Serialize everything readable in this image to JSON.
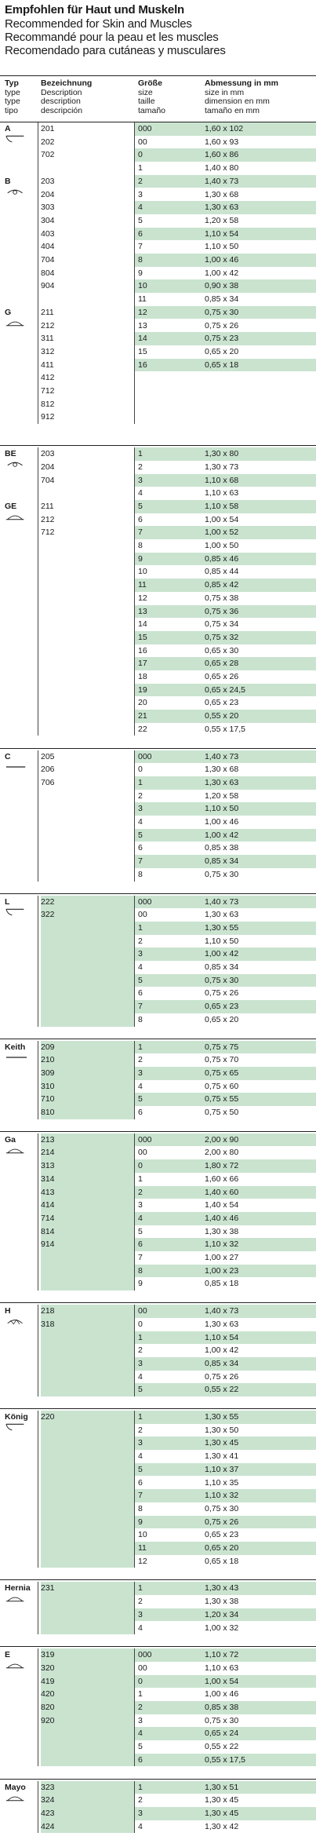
{
  "header": {
    "line1": "Empfohlen für Haut und Muskeln",
    "line2": "Recommended for Skin and Muscles",
    "line3": "Recommandé pour la peau et les muscles",
    "line4": "Recomendado para cutáneas y musculares"
  },
  "columns": {
    "typ": [
      "Typ",
      "type",
      "type",
      "tipo"
    ],
    "bez": [
      "Bezeichnung",
      "Description",
      "description",
      "descripción"
    ],
    "size": [
      "Größe",
      "size",
      "taille",
      "tamaño"
    ],
    "dim": [
      "Abmessung in mm",
      "size in mm",
      "dimension en mm",
      "tamaño en mm"
    ]
  },
  "sections": [
    {
      "types": [
        "A",
        "B",
        "G"
      ],
      "codes": [
        "201",
        "202",
        "702",
        "",
        "203",
        "204",
        "303",
        "304",
        "403",
        "404",
        "704",
        "804",
        "904",
        "",
        "211",
        "212",
        "311",
        "312",
        "411",
        "412",
        "712",
        "812",
        "912"
      ],
      "sizes": [
        "000",
        "00",
        "0",
        "1",
        "2",
        "3",
        "4",
        "5",
        "6",
        "7",
        "8",
        "9",
        "10",
        "11",
        "12",
        "13",
        "14",
        "15",
        "16"
      ],
      "dims": [
        "1,60 x 102",
        "1,60 x 93",
        "1,60 x 86",
        "1,40 x 80",
        "1,40 x 73",
        "1,30 x 68",
        "1,30 x 63",
        "1,20 x 58",
        "1,10 x 54",
        "1,10 x 50",
        "1,00 x 46",
        "1,00 x 42",
        "0,90 x 38",
        "0,85 x 34",
        "0,75 x 30",
        "0,75 x 26",
        "0,75 x 23",
        "0,65 x 20",
        "0,65 x 18"
      ]
    },
    {
      "types": [
        "BE",
        "GE"
      ],
      "codes": [
        "203",
        "204",
        "704",
        "",
        "211",
        "212",
        "712"
      ],
      "sizes": [
        "1",
        "2",
        "3",
        "4",
        "5",
        "6",
        "7",
        "8",
        "9",
        "10",
        "11",
        "12",
        "13",
        "14",
        "15",
        "16",
        "17",
        "18",
        "19",
        "20",
        "21",
        "22"
      ],
      "dims": [
        "1,30 x 80",
        "1,30 x 73",
        "1,10 x 68",
        "1,10 x 63",
        "1,10 x 58",
        "1,00 x 54",
        "1,00 x 52",
        "1,00 x 50",
        "0,85 x 46",
        "0,85 x 44",
        "0,85 x 42",
        "0,75 x 38",
        "0,75 x 36",
        "0,75 x 34",
        "0,75 x 32",
        "0,65 x 30",
        "0,65 x 28",
        "0,65 x 26",
        "0,65 x 24,5",
        "0,65 x 23",
        "0,55 x 20",
        "0,55 x 17,5"
      ]
    },
    {
      "types": [
        "C"
      ],
      "codes": [
        "205",
        "206",
        "706"
      ],
      "sizes": [
        "000",
        "0",
        "1",
        "2",
        "3",
        "4",
        "5",
        "6",
        "7",
        "8"
      ],
      "dims": [
        "1,40 x 73",
        "1,30 x 68",
        "1,30 x 63",
        "1,20 x 58",
        "1,10 x 50",
        "1,00 x 46",
        "1,00 x 42",
        "0,85 x 38",
        "0,85 x 34",
        "0,75 x 30"
      ]
    },
    {
      "types": [
        "L"
      ],
      "codes": [
        "222",
        "322"
      ],
      "sizes": [
        "000",
        "00",
        "1",
        "2",
        "3",
        "4",
        "5",
        "6",
        "7",
        "8"
      ],
      "dims": [
        "1,40 x 73",
        "1,30 x 63",
        "1,30 x 55",
        "1,10 x 50",
        "1,00 x 42",
        "0,85 x 34",
        "0,75 x 30",
        "0,75 x 26",
        "0,65 x 23",
        "0,65 x 20"
      ]
    },
    {
      "types": [
        "Keith"
      ],
      "codes": [
        "209",
        "210",
        "309",
        "310",
        "710",
        "810"
      ],
      "sizes": [
        "1",
        "2",
        "3",
        "4",
        "5",
        "6"
      ],
      "dims": [
        "0,75 x 75",
        "0,75 x 70",
        "0,75 x 65",
        "0,75 x 60",
        "0,75 x 55",
        "0,75 x 50"
      ]
    },
    {
      "types": [
        "Ga"
      ],
      "codes": [
        "213",
        "214",
        "313",
        "314",
        "413",
        "414",
        "714",
        "814",
        "914"
      ],
      "sizes": [
        "000",
        "00",
        "0",
        "1",
        "2",
        "3",
        "4",
        "5",
        "6",
        "7",
        "8",
        "9"
      ],
      "dims": [
        "2,00 x 90",
        "2,00 x 80",
        "1,80 x 72",
        "1,60 x 66",
        "1,40 x 60",
        "1,40 x 54",
        "1,40 x 46",
        "1,30 x 38",
        "1,10 x 32",
        "1,00 x 27",
        "1,00 x 23",
        "0,85 x 18"
      ]
    },
    {
      "types": [
        "H"
      ],
      "codes": [
        "218",
        "318"
      ],
      "sizes": [
        "00",
        "0",
        "1",
        "2",
        "3",
        "4",
        "5"
      ],
      "dims": [
        "1,40 x 73",
        "1,30 x 63",
        "1,10 x 54",
        "1,00 x 42",
        "0,85 x 34",
        "0,75 x 26",
        "0,55 x 22"
      ]
    },
    {
      "types": [
        "König"
      ],
      "codes": [
        "220"
      ],
      "sizes": [
        "1",
        "2",
        "3",
        "4",
        "5",
        "6",
        "7",
        "8",
        "9",
        "10",
        "11",
        "12"
      ],
      "dims": [
        "1,30 x 55",
        "1,30 x 50",
        "1,30 x 45",
        "1,30 x 41",
        "1,10 x 37",
        "1,10 x 35",
        "1,10 x 32",
        "0,75 x 30",
        "0,75 x 26",
        "0,65 x 23",
        "0,65 x 20",
        "0,65 x 18"
      ]
    },
    {
      "types": [
        "Hernia"
      ],
      "codes": [
        "231"
      ],
      "sizes": [
        "1",
        "2",
        "3",
        "4"
      ],
      "dims": [
        "1,30 x 43",
        "1,30 x 38",
        "1,20 x 34",
        "1,00 x 32"
      ]
    },
    {
      "types": [
        "E"
      ],
      "codes": [
        "319",
        "320",
        "419",
        "420",
        "820",
        "920"
      ],
      "sizes": [
        "000",
        "00",
        "0",
        "1",
        "2",
        "3",
        "4",
        "5",
        "6"
      ],
      "dims": [
        "1,10 x 72",
        "1,10 x 63",
        "1,00 x 54",
        "1,00 x 46",
        "0,85 x 38",
        "0,75 x 30",
        "0,65 x 24",
        "0,55 x 22",
        "0,55 x 17,5"
      ]
    },
    {
      "types": [
        "Mayo"
      ],
      "codes": [
        "323",
        "324",
        "423",
        "424"
      ],
      "sizes": [
        "1",
        "2",
        "3",
        "4"
      ],
      "dims": [
        "1,30 x 51",
        "1,30 x 45",
        "1,30 x 45",
        "1,30 x 42"
      ]
    }
  ]
}
